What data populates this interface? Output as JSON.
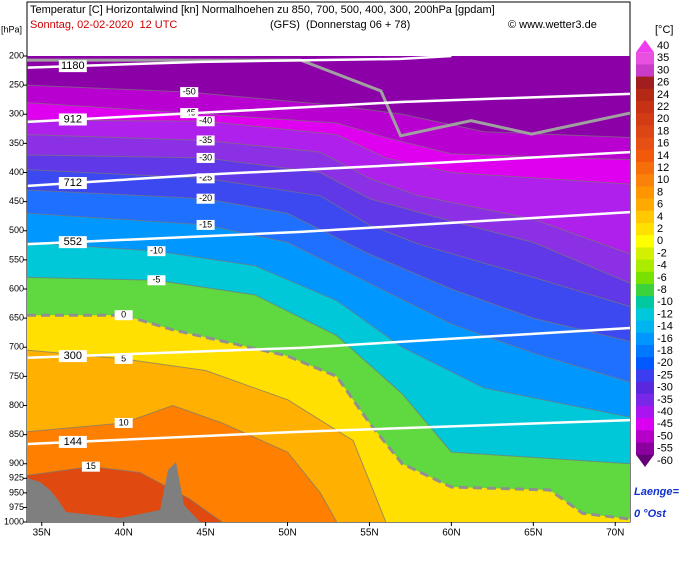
{
  "chart_data": {
    "type": "cross-section",
    "title": "Temperatur [C] Horizontalwind [kn] Normalhoehen zu 850, 700, 500, 400, 300, 200hPa [gpdam]",
    "date_line": "Sonntag, 02-02-2020  12 UTC",
    "run_line": "(GFS)  (Donnerstag 06 + 78)",
    "source": "© www.wetter3.de",
    "y_unit_label": "[hPa]",
    "colorbar_label": "[°C]",
    "footer": [
      "Laenge=",
      "0 °Ost"
    ],
    "xlim": [
      34.1,
      70.9
    ],
    "ylim": [
      200,
      1000
    ],
    "xticks": [
      {
        "value": 35,
        "label": "35N"
      },
      {
        "value": 40,
        "label": "40N"
      },
      {
        "value": 45,
        "label": "45N"
      },
      {
        "value": 50,
        "label": "50N"
      },
      {
        "value": 55,
        "label": "55N"
      },
      {
        "value": 60,
        "label": "60N"
      },
      {
        "value": 65,
        "label": "65N"
      },
      {
        "value": 70,
        "label": "70N"
      }
    ],
    "yticks": [
      200,
      250,
      300,
      350,
      400,
      450,
      500,
      550,
      600,
      650,
      700,
      750,
      800,
      850,
      900,
      925,
      950,
      975,
      1000
    ],
    "background_color": "#8c00a8",
    "isotherms": [
      {
        "level": -50,
        "color": "#b800d0",
        "points": [
          [
            34.1,
            250
          ],
          [
            44,
            262
          ],
          [
            53,
            285
          ],
          [
            57,
            300
          ],
          [
            62,
            330
          ],
          [
            70.9,
            340
          ]
        ]
      },
      {
        "level": -45,
        "color": "#e000f0",
        "points": [
          [
            34.1,
            280
          ],
          [
            44,
            298
          ],
          [
            53,
            315
          ],
          [
            56,
            340
          ],
          [
            60,
            368
          ],
          [
            70.9,
            378
          ]
        ]
      },
      {
        "level": -40,
        "color": "#b020ec",
        "points": [
          [
            34.1,
            310
          ],
          [
            45,
            312
          ],
          [
            53,
            335
          ],
          [
            56,
            375
          ],
          [
            60,
            400
          ],
          [
            70.9,
            420
          ]
        ]
      },
      {
        "level": -35,
        "color": "#8c30e6",
        "points": [
          [
            34.1,
            335
          ],
          [
            45,
            345
          ],
          [
            52,
            365
          ],
          [
            55,
            410
          ],
          [
            58,
            440
          ],
          [
            65,
            480
          ],
          [
            70.9,
            540
          ]
        ]
      },
      {
        "level": -30,
        "color": "#6038e8",
        "points": [
          [
            34.1,
            370
          ],
          [
            45,
            375
          ],
          [
            52,
            400
          ],
          [
            55,
            445
          ],
          [
            59,
            476
          ],
          [
            65,
            520
          ],
          [
            70.9,
            590
          ]
        ]
      },
      {
        "level": -25,
        "color": "#3c48f0",
        "points": [
          [
            34.1,
            395
          ],
          [
            45,
            410
          ],
          [
            52,
            440
          ],
          [
            55,
            490
          ],
          [
            58,
            523
          ],
          [
            65,
            580
          ],
          [
            70.9,
            630
          ]
        ]
      },
      {
        "level": -20,
        "color": "#2070ff",
        "points": [
          [
            34.1,
            430
          ],
          [
            45,
            445
          ],
          [
            50,
            470
          ],
          [
            55,
            540
          ],
          [
            60,
            600
          ],
          [
            65,
            650
          ],
          [
            70.9,
            690
          ]
        ]
      },
      {
        "level": -15,
        "color": "#0098ff",
        "points": [
          [
            34.1,
            470
          ],
          [
            45,
            490
          ],
          [
            50,
            520
          ],
          [
            55,
            590
          ],
          [
            60,
            660
          ],
          [
            65,
            710
          ],
          [
            70.9,
            760
          ]
        ]
      },
      {
        "level": -10,
        "color": "#00c8d8",
        "points": [
          [
            34.1,
            520
          ],
          [
            42,
            535
          ],
          [
            48,
            560
          ],
          [
            53,
            620
          ],
          [
            57,
            700
          ],
          [
            62,
            770
          ],
          [
            70.9,
            820
          ]
        ]
      },
      {
        "level": -5,
        "color": "#60d840",
        "points": [
          [
            34.1,
            580
          ],
          [
            42,
            585
          ],
          [
            48,
            610
          ],
          [
            53,
            680
          ],
          [
            57,
            780
          ],
          [
            60,
            880
          ],
          [
            70.9,
            900
          ]
        ]
      },
      {
        "level": 0,
        "color": "#ffe000",
        "style": "dashed",
        "points": [
          [
            34.1,
            645
          ],
          [
            40,
            645
          ],
          [
            43,
            670
          ],
          [
            50,
            715
          ],
          [
            53,
            750
          ],
          [
            55,
            830
          ],
          [
            57,
            900
          ],
          [
            60,
            940
          ],
          [
            66,
            945
          ],
          [
            68,
            985
          ],
          [
            70.9,
            995
          ]
        ]
      },
      {
        "level": 5,
        "color": "#ffb000",
        "points": [
          [
            34.1,
            705
          ],
          [
            40,
            720
          ],
          [
            45,
            740
          ],
          [
            50,
            790
          ],
          [
            54,
            860
          ],
          [
            56,
            1000
          ]
        ]
      },
      {
        "level": 10,
        "color": "#ff8000",
        "points": [
          [
            34.1,
            845
          ],
          [
            40,
            830
          ],
          [
            43,
            800
          ],
          [
            46,
            830
          ],
          [
            50,
            880
          ],
          [
            52,
            950
          ],
          [
            53,
            1000
          ]
        ]
      },
      {
        "level": 15,
        "color": "#e04a10",
        "points": [
          [
            34.1,
            920
          ],
          [
            38,
            905
          ],
          [
            41,
            915
          ],
          [
            44,
            960
          ],
          [
            46,
            1000
          ]
        ]
      }
    ],
    "height_lines": [
      {
        "level": 1180,
        "points": [
          [
            34.15,
            220
          ],
          [
            44.7,
            210
          ],
          [
            56.9,
            205
          ],
          [
            60,
            200
          ]
        ]
      },
      {
        "level": 912,
        "points": [
          [
            34.15,
            313
          ],
          [
            47.8,
            293
          ],
          [
            56.9,
            279
          ],
          [
            70.9,
            265
          ]
        ]
      },
      {
        "level": 712,
        "points": [
          [
            34.15,
            423
          ],
          [
            44.7,
            404
          ],
          [
            56.9,
            387
          ],
          [
            70.9,
            365
          ]
        ]
      },
      {
        "level": 552,
        "points": [
          [
            34.15,
            523
          ],
          [
            50.8,
            502
          ],
          [
            70.9,
            468
          ]
        ]
      },
      {
        "level": 300,
        "points": [
          [
            34.15,
            718
          ],
          [
            50.8,
            701
          ],
          [
            70.9,
            667
          ]
        ]
      },
      {
        "level": 144,
        "points": [
          [
            34.15,
            866
          ],
          [
            50.8,
            845
          ],
          [
            70.9,
            825
          ]
        ]
      }
    ],
    "gray_line": {
      "points": [
        [
          34.1,
          207
        ],
        [
          50.8,
          207
        ],
        [
          55.7,
          260
        ],
        [
          56.9,
          337
        ],
        [
          61.2,
          311
        ],
        [
          64.9,
          334
        ],
        [
          70.9,
          298
        ]
      ]
    },
    "colorbar": {
      "values": [
        40,
        35,
        30,
        26,
        24,
        22,
        20,
        18,
        16,
        14,
        12,
        10,
        8,
        6,
        4,
        2,
        0,
        -2,
        -4,
        -6,
        -8,
        -10,
        -12,
        -14,
        -16,
        -18,
        -20,
        -25,
        -30,
        -35,
        -40,
        -45,
        -50,
        -55,
        -60
      ],
      "colors": [
        "#f03cf0",
        "#e850e0",
        "#c83cc8",
        "#a01e1e",
        "#b42814",
        "#c83214",
        "#d23c14",
        "#dc4614",
        "#e65014",
        "#f05a0a",
        "#f56e0a",
        "#fa820a",
        "#ff9600",
        "#ffaa00",
        "#ffc800",
        "#ffe100",
        "#ffff00",
        "#d2f000",
        "#aaeb00",
        "#78e100",
        "#3cd23c",
        "#00c8a0",
        "#00c8dc",
        "#00b4f0",
        "#0096ff",
        "#0078ff",
        "#005aff",
        "#3c3cf0",
        "#5a28dc",
        "#7828e6",
        "#aa14f0",
        "#dc00f0",
        "#b400c8",
        "#8c00a0",
        "#640078"
      ]
    }
  }
}
